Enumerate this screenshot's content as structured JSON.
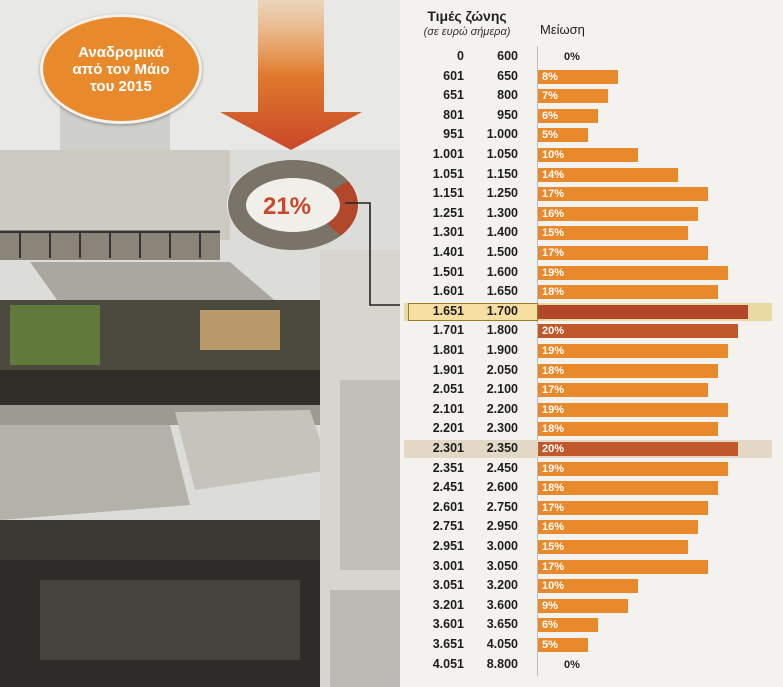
{
  "badge": {
    "text": "Αναδρομικά\nαπό τον Μάιο\nτου 2015"
  },
  "donut": {
    "value_label": "21%",
    "fraction": 0.21
  },
  "colors": {
    "accent": "#e8892b",
    "highlight": "#b2472a",
    "dark_bar": "#c0582b"
  },
  "table": {
    "header_zone": "Τιμές ζώνης",
    "header_unit": "(σε ευρώ σήμερα)",
    "header_reduction": "Μείωση"
  },
  "chart_data": {
    "type": "bar",
    "orientation": "horizontal",
    "xlim": [
      0,
      21
    ],
    "rows": [
      {
        "from": "0",
        "to": "600",
        "value": 0,
        "label": "0%"
      },
      {
        "from": "601",
        "to": "650",
        "value": 8,
        "label": "8%"
      },
      {
        "from": "651",
        "to": "800",
        "value": 7,
        "label": "7%"
      },
      {
        "from": "801",
        "to": "950",
        "value": 6,
        "label": "6%"
      },
      {
        "from": "951",
        "to": "1.000",
        "value": 5,
        "label": "5%"
      },
      {
        "from": "1.001",
        "to": "1.050",
        "value": 10,
        "label": "10%"
      },
      {
        "from": "1.051",
        "to": "1.150",
        "value": 14,
        "label": "14%"
      },
      {
        "from": "1.151",
        "to": "1.250",
        "value": 17,
        "label": "17%"
      },
      {
        "from": "1.251",
        "to": "1.300",
        "value": 16,
        "label": "16%"
      },
      {
        "from": "1.301",
        "to": "1.400",
        "value": 15,
        "label": "15%"
      },
      {
        "from": "1.401",
        "to": "1.500",
        "value": 17,
        "label": "17%"
      },
      {
        "from": "1.501",
        "to": "1.600",
        "value": 19,
        "label": "19%"
      },
      {
        "from": "1.601",
        "to": "1.650",
        "value": 18,
        "label": "18%"
      },
      {
        "from": "1.651",
        "to": "1.700",
        "value": 21,
        "label": "",
        "highlight": true
      },
      {
        "from": "1.701",
        "to": "1.800",
        "value": 20,
        "label": "20%",
        "dark": true
      },
      {
        "from": "1.801",
        "to": "1.900",
        "value": 19,
        "label": "19%"
      },
      {
        "from": "1.901",
        "to": "2.050",
        "value": 18,
        "label": "18%"
      },
      {
        "from": "2.051",
        "to": "2.100",
        "value": 17,
        "label": "17%"
      },
      {
        "from": "2.101",
        "to": "2.200",
        "value": 19,
        "label": "19%"
      },
      {
        "from": "2.201",
        "to": "2.300",
        "value": 18,
        "label": "18%"
      },
      {
        "from": "2.301",
        "to": "2.350",
        "value": 20,
        "label": "20%",
        "dark": true,
        "band": true
      },
      {
        "from": "2.351",
        "to": "2.450",
        "value": 19,
        "label": "19%"
      },
      {
        "from": "2.451",
        "to": "2.600",
        "value": 18,
        "label": "18%"
      },
      {
        "from": "2.601",
        "to": "2.750",
        "value": 17,
        "label": "17%"
      },
      {
        "from": "2.751",
        "to": "2.950",
        "value": 16,
        "label": "16%"
      },
      {
        "from": "2.951",
        "to": "3.000",
        "value": 15,
        "label": "15%"
      },
      {
        "from": "3.001",
        "to": "3.050",
        "value": 17,
        "label": "17%"
      },
      {
        "from": "3.051",
        "to": "3.200",
        "value": 10,
        "label": "10%"
      },
      {
        "from": "3.201",
        "to": "3.600",
        "value": 9,
        "label": "9%"
      },
      {
        "from": "3.601",
        "to": "3.650",
        "value": 6,
        "label": "6%"
      },
      {
        "from": "3.651",
        "to": "4.050",
        "value": 5,
        "label": "5%"
      },
      {
        "from": "4.051",
        "to": "8.800",
        "value": 0,
        "label": "0%"
      }
    ]
  }
}
